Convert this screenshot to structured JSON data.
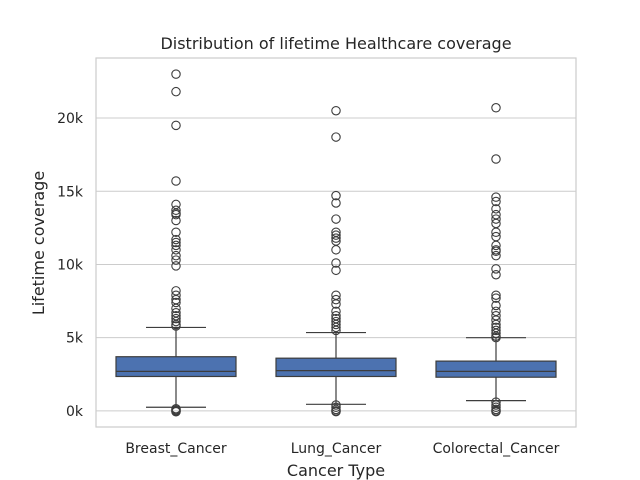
{
  "chart_data": {
    "type": "box",
    "title": "Distribution of lifetime Healthcare coverage",
    "xlabel": "Cancer Type",
    "ylabel": "Lifetime coverage",
    "categories": [
      "Breast_Cancer",
      "Lung_Cancer",
      "Colorectal_Cancer"
    ],
    "yticks": [
      {
        "value": 0,
        "label": "0k"
      },
      {
        "value": 5000,
        "label": "5k"
      },
      {
        "value": 10000,
        "label": "10k"
      },
      {
        "value": 15000,
        "label": "15k"
      },
      {
        "value": 20000,
        "label": "20k"
      }
    ],
    "ylim": [
      -1100,
      24100
    ],
    "grid": "horizontal",
    "box_color": "#4c72b0",
    "line_color": "#3d3d3d",
    "boxes": [
      {
        "category": "Breast_Cancer",
        "whisker_low": 250,
        "q1": 2350,
        "median": 2700,
        "q3": 3700,
        "whisker_high": 5700,
        "outliers": [
          23000,
          21800,
          19500,
          15700,
          14100,
          13700,
          13500,
          13400,
          13000,
          12200,
          11700,
          11500,
          11300,
          11000,
          10600,
          10300,
          9900,
          8200,
          7900,
          7600,
          7400,
          7000,
          6700,
          6500,
          6300,
          6100,
          5900,
          5800,
          150,
          80,
          20,
          -30,
          -60
        ]
      },
      {
        "category": "Lung_Cancer",
        "whisker_low": 450,
        "q1": 2350,
        "median": 2750,
        "q3": 3600,
        "whisker_high": 5350,
        "outliers": [
          20500,
          18700,
          14700,
          14200,
          13100,
          12200,
          12000,
          11800,
          11600,
          11000,
          10100,
          9600,
          7900,
          7600,
          7300,
          6800,
          6500,
          6300,
          6100,
          5900,
          5700,
          5500,
          400,
          250,
          100,
          0,
          -50
        ]
      },
      {
        "category": "Colorectal_Cancer",
        "whisker_low": 700,
        "q1": 2300,
        "median": 2700,
        "q3": 3400,
        "whisker_high": 5000,
        "outliers": [
          20700,
          17200,
          14600,
          14300,
          13800,
          13400,
          13100,
          12800,
          12200,
          11900,
          11300,
          11000,
          10900,
          10600,
          9700,
          9300,
          7900,
          7700,
          7200,
          6800,
          6500,
          6200,
          5900,
          5700,
          5500,
          5300,
          5100,
          5000,
          600,
          400,
          250,
          100,
          0,
          -50
        ]
      }
    ]
  }
}
